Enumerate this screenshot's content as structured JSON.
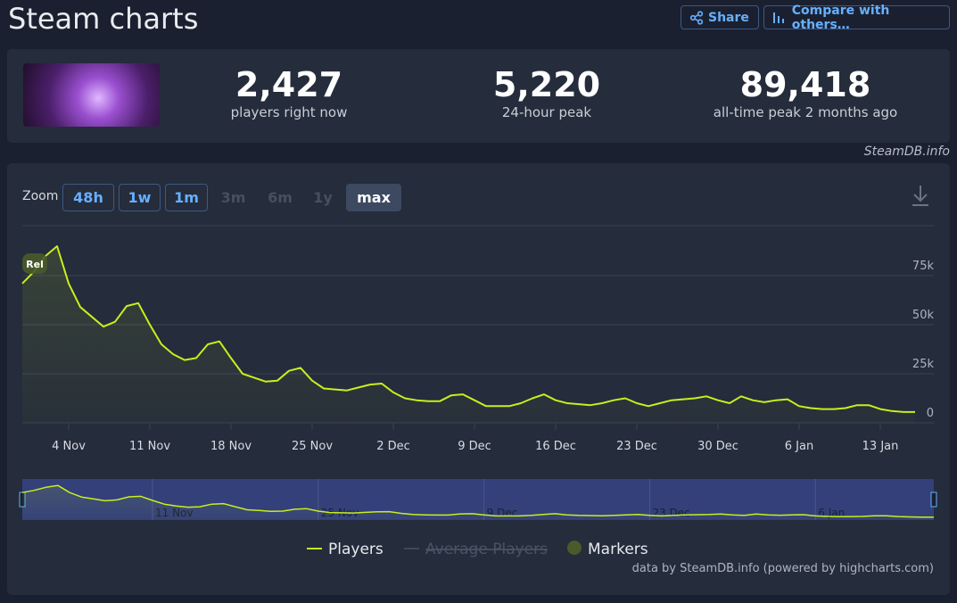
{
  "header": {
    "title": "Steam charts",
    "share": "Share",
    "compare": "Compare with others…"
  },
  "stats": [
    {
      "value": "2,427",
      "label": "players right now"
    },
    {
      "value": "5,220",
      "label": "24-hour peak"
    },
    {
      "value": "89,418",
      "label": "all-time peak 2 months ago"
    }
  ],
  "source": "SteamDB.info",
  "zoom": {
    "label": "Zoom",
    "buttons": [
      "48h",
      "1w",
      "1m",
      "3m",
      "6m",
      "1y",
      "max"
    ]
  },
  "chart_data": {
    "type": "line",
    "categories": [
      null,
      null,
      null,
      null,
      "4 Nov",
      null,
      null,
      null,
      null,
      null,
      null,
      "11 Nov",
      null,
      null,
      null,
      null,
      null,
      null,
      "18 Nov",
      null,
      null,
      null,
      null,
      null,
      null,
      "25 Nov",
      null,
      null,
      null,
      null,
      null,
      null,
      "2 Dec",
      null,
      null,
      null,
      null,
      null,
      null,
      "9 Dec",
      null,
      null,
      null,
      null,
      null,
      null,
      "16 Dec",
      null,
      null,
      null,
      null,
      null,
      null,
      "23 Dec",
      null,
      null,
      null,
      null,
      null,
      null,
      "30 Dec",
      null,
      null,
      null,
      null,
      null,
      null,
      "6 Jan",
      null,
      null,
      null,
      null,
      null,
      null,
      "13 Jan",
      null,
      null,
      null
    ],
    "series": [
      {
        "name": "Players",
        "color": "#c8ee1e",
        "values": [
          71000,
          77000,
          85000,
          90000,
          71000,
          59000,
          54000,
          49000,
          51500,
          59500,
          61000,
          50000,
          40000,
          35000,
          32000,
          33000,
          40000,
          41500,
          33000,
          25000,
          23000,
          21000,
          21500,
          26500,
          28000,
          21500,
          17500,
          17000,
          16500,
          18000,
          19500,
          20000,
          15500,
          12500,
          11500,
          11000,
          11000,
          14000,
          14500,
          11500,
          8500,
          8500,
          8500,
          10000,
          12500,
          14500,
          11500,
          10000,
          9500,
          9000,
          10000,
          11500,
          12500,
          10000,
          8500,
          10000,
          11500,
          12000,
          12500,
          13500,
          11500,
          10000,
          13500,
          11500,
          10500,
          11500,
          12000,
          8500,
          7500,
          7000,
          7000,
          7500,
          9000,
          9000,
          7000,
          6000,
          5500,
          5500
        ]
      }
    ],
    "hidden_series": [
      {
        "name": "Average Players"
      }
    ],
    "markers": {
      "name": "Markers",
      "items": [
        "Rel"
      ]
    },
    "ylim": [
      0,
      100000
    ],
    "yticks": [
      0,
      {
        "value": 25000,
        "label": "25k"
      },
      {
        "value": 50000,
        "label": "50k"
      },
      {
        "value": 75000,
        "label": "75k"
      }
    ],
    "grid": true,
    "navigator_labels": [
      "11 Nov",
      "25 Nov",
      "9 Dec",
      "23 Dec",
      "6 Jan"
    ],
    "credit": "data by SteamDB.info (powered by highcharts.com)"
  }
}
